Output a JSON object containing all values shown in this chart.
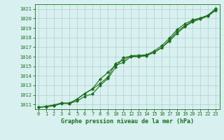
{
  "title": "Graphe pression niveau de la mer (hPa)",
  "x": [
    0,
    1,
    2,
    3,
    4,
    5,
    6,
    7,
    8,
    9,
    10,
    11,
    12,
    13,
    14,
    15,
    16,
    17,
    18,
    19,
    20,
    21,
    22,
    23
  ],
  "line1": [
    1010.7,
    1010.75,
    1010.85,
    1011.1,
    1011.1,
    1011.35,
    1011.85,
    1012.1,
    1013.0,
    1013.7,
    1014.9,
    1015.9,
    1016.05,
    1016.05,
    1016.15,
    1016.45,
    1016.95,
    1017.65,
    1018.45,
    1019.15,
    1019.65,
    1019.95,
    1020.25,
    1020.85
  ],
  "line2": [
    1010.7,
    1010.8,
    1010.95,
    1011.15,
    1011.15,
    1011.55,
    1012.15,
    1012.6,
    1013.2,
    1013.85,
    1015.3,
    1015.65,
    1016.1,
    1016.15,
    1016.2,
    1016.6,
    1017.15,
    1017.95,
    1018.85,
    1019.45,
    1019.85,
    1020.05,
    1020.35,
    1021.05
  ],
  "line3": [
    1010.7,
    1010.8,
    1010.9,
    1011.15,
    1011.1,
    1011.55,
    1012.15,
    1012.65,
    1013.65,
    1014.35,
    1015.1,
    1015.4,
    1016.0,
    1016.0,
    1016.1,
    1016.45,
    1016.95,
    1017.75,
    1018.65,
    1019.25,
    1019.75,
    1020.05,
    1020.3,
    1020.95
  ],
  "line_color": "#1a6e1a",
  "background_color": "#d8f0f0",
  "grid_color": "#b0d0d0",
  "text_color": "#1a6e1a",
  "ylim_min": 1010.5,
  "ylim_max": 1021.5,
  "yticks": [
    1011,
    1012,
    1013,
    1014,
    1015,
    1016,
    1017,
    1018,
    1019,
    1020,
    1021
  ],
  "marker": "D",
  "marker_size": 2.0,
  "linewidth": 0.8,
  "tick_fontsize": 5.0,
  "xlabel_fontsize": 6.0
}
